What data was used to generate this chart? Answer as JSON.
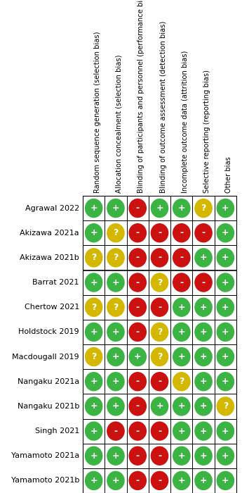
{
  "studies": [
    "Agrawal 2022",
    "Akizawa 2021a",
    "Akizawa 2021b",
    "Barrat 2021",
    "Chertow 2021",
    "Holdstock 2019",
    "Macdougall 2019",
    "Nangaku 2021a",
    "Nangaku 2021b",
    "Singh 2021",
    "Yamamoto 2021a",
    "Yamamoto 2021b"
  ],
  "domains": [
    "Random sequence generation (selection bias)",
    "Allocation concealment (selection bias)",
    "Blinding of participants and personnel (performance bias)",
    "Blinding of outcome assessment (detection bias)",
    "Incomplete outcome data (attrition bias)",
    "Selective reporting (reporting bias)",
    "Other bias"
  ],
  "ratings": [
    [
      "+",
      "+",
      "-",
      "+",
      "+",
      "?",
      "+"
    ],
    [
      "+",
      "?",
      "-",
      "-",
      "-",
      "-",
      "+"
    ],
    [
      "?",
      "?",
      "-",
      "-",
      "-",
      "+",
      "+"
    ],
    [
      "+",
      "+",
      "-",
      "?",
      "-",
      "-",
      "+"
    ],
    [
      "?",
      "?",
      "-",
      "-",
      "+",
      "+",
      "+"
    ],
    [
      "+",
      "+",
      "-",
      "?",
      "+",
      "+",
      "+"
    ],
    [
      "?",
      "+",
      "+",
      "?",
      "+",
      "+",
      "+"
    ],
    [
      "+",
      "+",
      "-",
      "-",
      "?",
      "+",
      "+"
    ],
    [
      "+",
      "+",
      "-",
      "+",
      "+",
      "+",
      "?"
    ],
    [
      "+",
      "-",
      "-",
      "-",
      "+",
      "+",
      "+"
    ],
    [
      "+",
      "+",
      "-",
      "-",
      "+",
      "+",
      "+"
    ],
    [
      "+",
      "+",
      "-",
      "-",
      "+",
      "+",
      "+"
    ]
  ],
  "color_map": {
    "+": "#3cb443",
    "-": "#cc1111",
    "?": "#d4b800"
  },
  "background_color": "#ffffff",
  "grid_color": "#000000",
  "text_color": "#000000",
  "study_label_fontsize": 8.0,
  "domain_label_fontsize": 7.2,
  "symbol_fontsize": 9.0
}
